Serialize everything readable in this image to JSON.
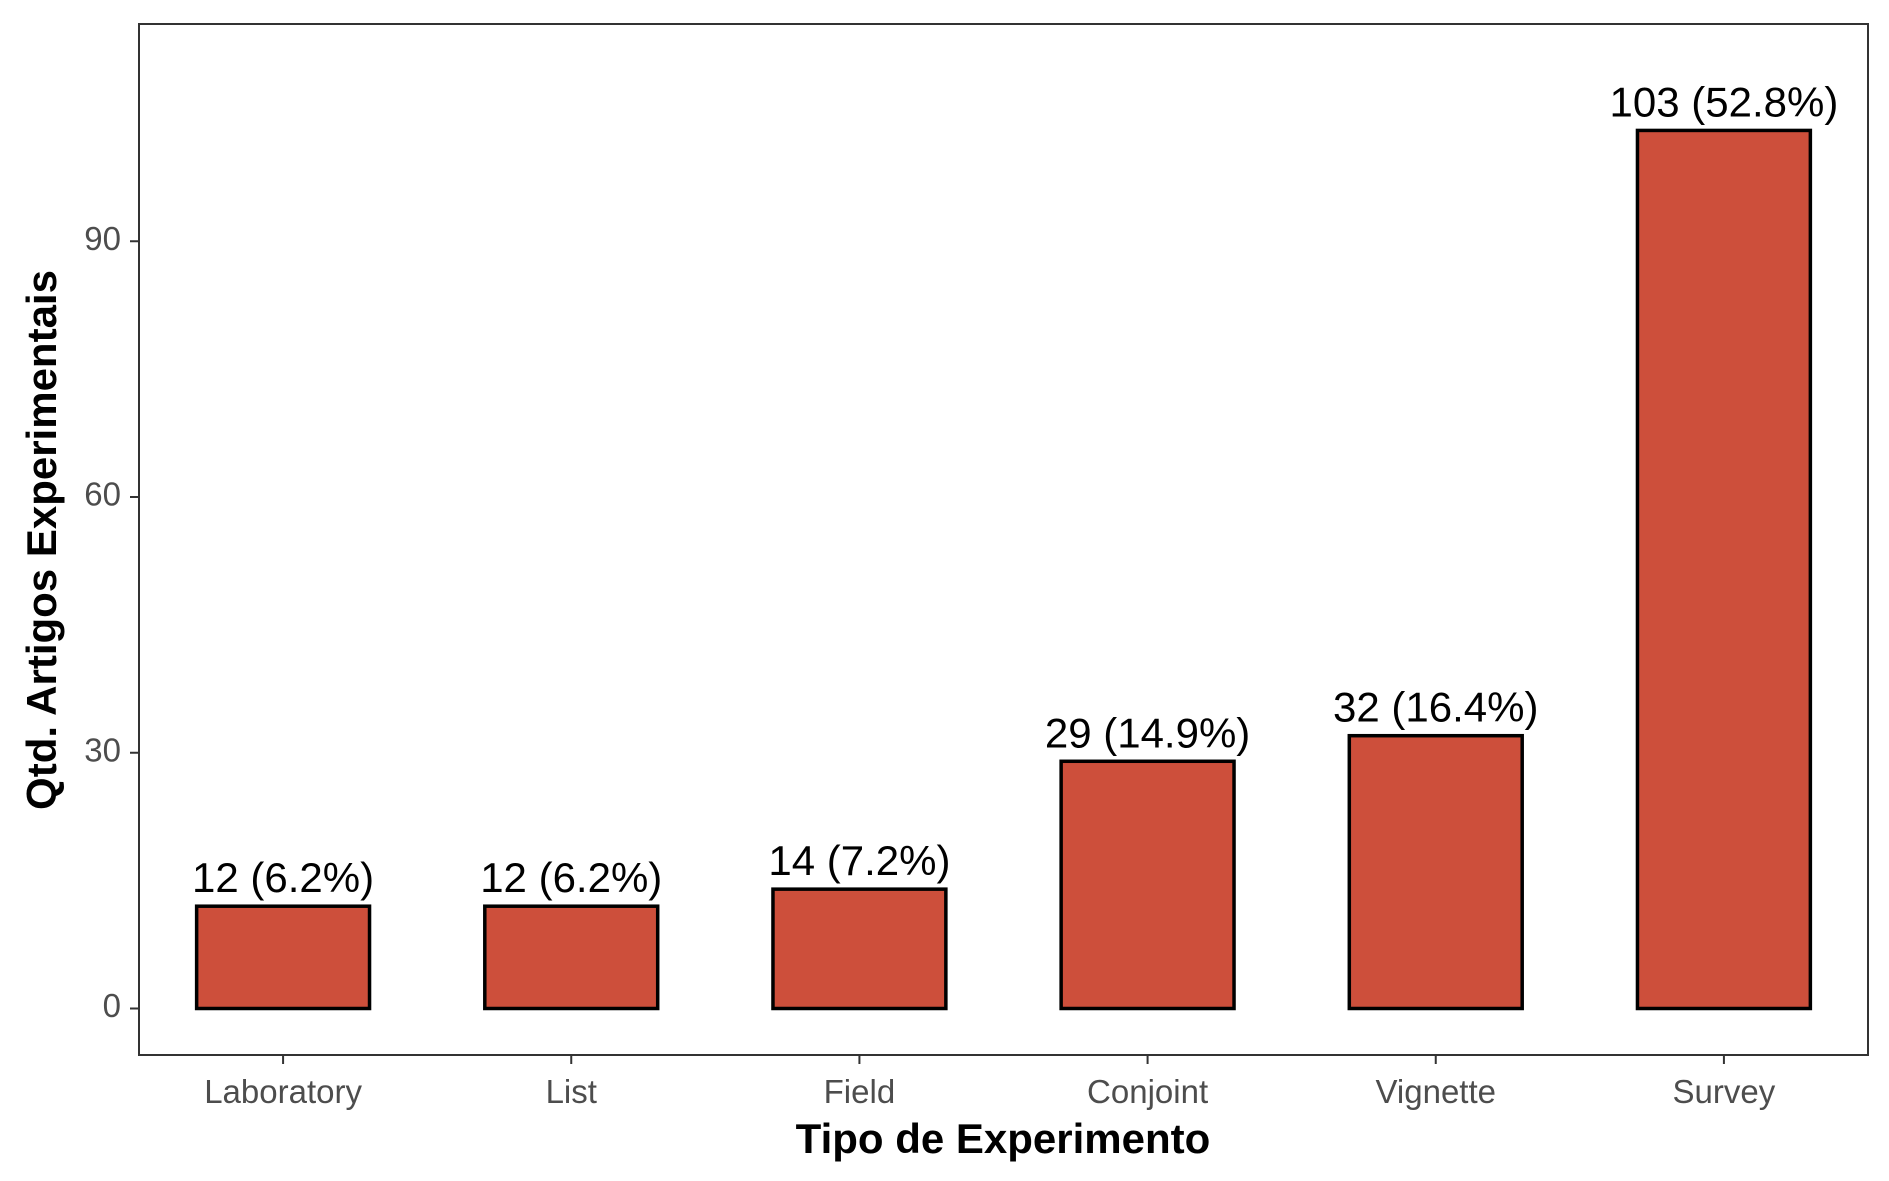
{
  "chart_data": {
    "type": "bar",
    "xlabel": "Tipo de Experimento",
    "ylabel": "Qtd. Artigos Experimentais",
    "categories": [
      "Laboratory",
      "List",
      "Field",
      "Conjoint",
      "Vignette",
      "Survey"
    ],
    "values": [
      12,
      12,
      14,
      29,
      32,
      103
    ],
    "bar_labels": [
      "12 (6.2%)",
      "12 (6.2%)",
      "14 (7.2%)",
      "29 (14.9%)",
      "32 (16.4%)",
      "103 (52.8%)"
    ],
    "yticks": [
      0,
      30,
      60,
      90
    ],
    "ylim": [
      -5.5,
      115.5
    ],
    "grid": false,
    "legend": "none",
    "colors": {
      "bar_fill": "#cd4f3b",
      "bar_stroke": "#000000",
      "panel_border": "#333333",
      "tick_text": "#4d4d4d"
    }
  }
}
